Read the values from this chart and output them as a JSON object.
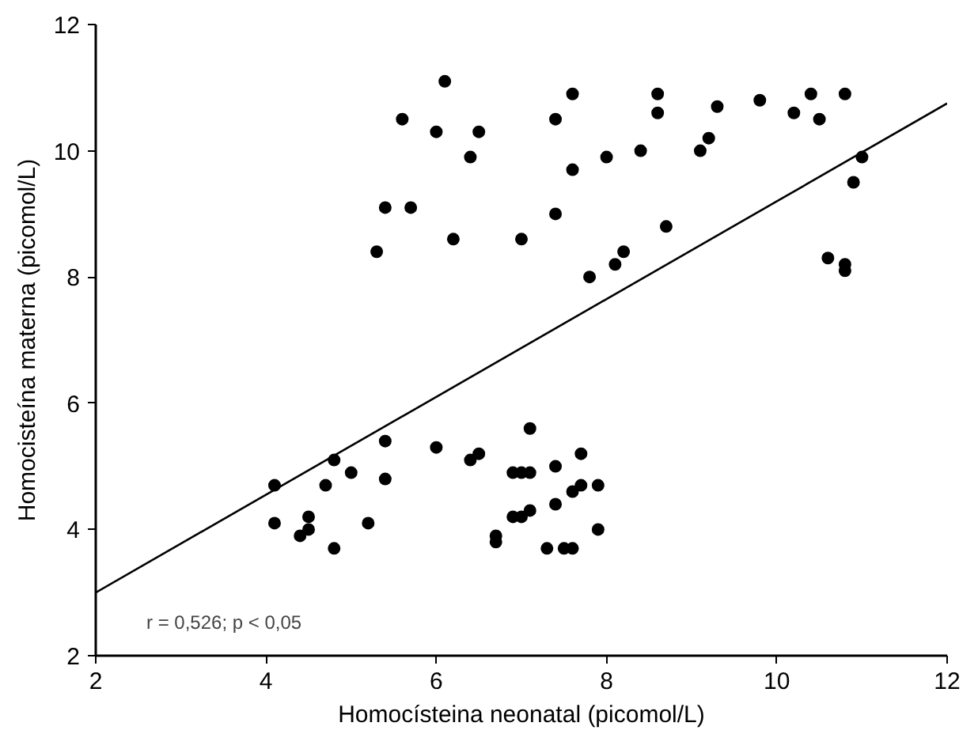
{
  "chart_data": {
    "type": "scatter",
    "xlabel": "Homocísteina neonatal (picomol/L)",
    "ylabel": "Homocisteína materna (picomol/L)",
    "xlim": [
      2,
      12
    ],
    "ylim": [
      2,
      12
    ],
    "xticks": [
      2,
      4,
      6,
      8,
      10,
      12
    ],
    "yticks": [
      2,
      4,
      6,
      8,
      10,
      12
    ],
    "grid": false,
    "marker": "circle",
    "annotations": [
      "r = 0,526; p < 0,05"
    ],
    "series": [
      {
        "color": "#000000",
        "x": [
          5.3,
          5.4,
          5.6,
          5.7,
          6.0,
          6.1,
          6.2,
          6.4,
          6.5,
          7.0,
          7.4,
          7.4,
          7.6,
          7.6,
          7.8,
          8.0,
          8.1,
          8.2,
          8.4,
          8.6,
          8.6,
          8.7,
          9.1,
          9.2,
          9.3,
          9.8,
          10.2,
          10.4,
          10.5,
          10.6,
          10.8,
          10.8,
          10.8,
          10.9,
          11.0,
          4.1,
          4.1,
          4.4,
          4.5,
          4.5,
          4.7,
          4.8,
          4.8,
          5.0,
          5.2,
          5.4,
          5.4,
          6.0,
          6.4,
          6.5,
          6.7,
          6.7,
          6.9,
          6.9,
          7.0,
          7.0,
          7.1,
          7.1,
          7.1,
          7.3,
          7.4,
          7.4,
          7.5,
          7.6,
          7.6,
          7.7,
          7.7,
          7.9,
          7.9
        ],
        "values": [
          8.4,
          9.1,
          10.5,
          9.1,
          10.3,
          11.1,
          8.6,
          9.9,
          10.3,
          8.6,
          10.5,
          9.0,
          10.9,
          9.7,
          8.0,
          9.9,
          8.2,
          8.4,
          10.0,
          10.9,
          10.6,
          8.8,
          10.0,
          10.2,
          10.7,
          10.8,
          10.6,
          10.9,
          10.5,
          8.3,
          10.9,
          8.2,
          8.1,
          9.5,
          9.9,
          4.7,
          4.1,
          3.9,
          4.2,
          4.0,
          4.7,
          5.1,
          3.7,
          4.9,
          4.1,
          5.4,
          4.8,
          5.3,
          5.1,
          5.2,
          3.9,
          3.8,
          4.9,
          4.2,
          4.9,
          4.2,
          4.9,
          4.3,
          5.6,
          3.7,
          5.0,
          4.4,
          3.7,
          4.6,
          3.7,
          5.2,
          4.7,
          4.7,
          4.0
        ]
      },
      {
        "type": "line",
        "color": "#000000",
        "x": [
          2,
          12
        ],
        "values": [
          3.0,
          10.75
        ],
        "line_style": "solid",
        "marker": "none"
      }
    ]
  }
}
